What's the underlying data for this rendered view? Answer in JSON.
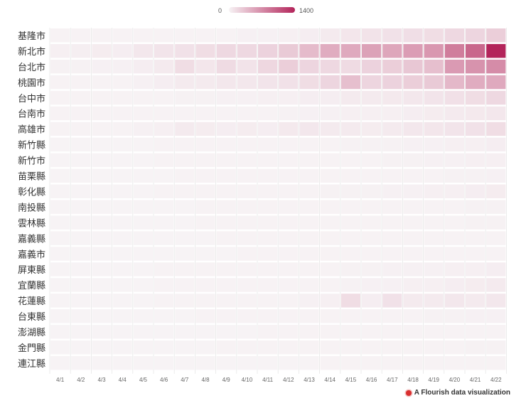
{
  "chart_data": {
    "type": "heatmap",
    "title": "",
    "legend": {
      "min_label": "0",
      "max_label": "1400",
      "min": 0,
      "max": 1400,
      "placement": "top-center"
    },
    "colors": {
      "low": "#f7f3f5",
      "high": "#b3245a",
      "grid": "#e6e6e6"
    },
    "columns": [
      "4/1",
      "4/2",
      "4/3",
      "4/4",
      "4/5",
      "4/6",
      "4/7",
      "4/8",
      "4/9",
      "4/10",
      "4/11",
      "4/12",
      "4/13",
      "4/14",
      "4/15",
      "4/16",
      "4/17",
      "4/18",
      "4/19",
      "4/20",
      "4/21",
      "4/22"
    ],
    "rows": [
      "基隆市",
      "新北市",
      "台北市",
      "桃園市",
      "台中市",
      "台南市",
      "高雄市",
      "新竹縣",
      "新竹市",
      "苗栗縣",
      "彰化縣",
      "南投縣",
      "雲林縣",
      "嘉義縣",
      "嘉義市",
      "屏東縣",
      "宜蘭縣",
      "花蓮縣",
      "台東縣",
      "澎湖縣",
      "金門縣",
      "連江縣"
    ],
    "values": [
      [
        5,
        5,
        5,
        5,
        5,
        5,
        10,
        10,
        10,
        20,
        20,
        30,
        40,
        60,
        90,
        110,
        120,
        140,
        150,
        180,
        200,
        250
      ],
      [
        30,
        35,
        50,
        40,
        80,
        100,
        120,
        150,
        180,
        180,
        220,
        280,
        380,
        480,
        500,
        550,
        520,
        580,
        620,
        800,
        950,
        1400
      ],
      [
        15,
        15,
        20,
        20,
        40,
        60,
        150,
        90,
        160,
        110,
        190,
        250,
        200,
        180,
        160,
        220,
        250,
        300,
        350,
        600,
        650,
        700
      ],
      [
        10,
        10,
        10,
        10,
        20,
        40,
        60,
        60,
        80,
        80,
        100,
        120,
        150,
        200,
        350,
        200,
        220,
        250,
        280,
        400,
        480,
        500
      ],
      [
        5,
        5,
        5,
        5,
        5,
        10,
        15,
        15,
        20,
        20,
        25,
        30,
        40,
        40,
        60,
        60,
        70,
        80,
        100,
        130,
        150,
        180
      ],
      [
        5,
        5,
        5,
        5,
        5,
        5,
        5,
        5,
        10,
        10,
        10,
        15,
        20,
        20,
        30,
        30,
        30,
        40,
        50,
        60,
        70,
        80
      ],
      [
        10,
        10,
        10,
        5,
        20,
        30,
        60,
        50,
        40,
        50,
        40,
        70,
        80,
        60,
        60,
        50,
        60,
        80,
        90,
        100,
        120,
        150
      ],
      [
        2,
        2,
        2,
        2,
        2,
        5,
        5,
        5,
        5,
        5,
        5,
        10,
        10,
        10,
        15,
        15,
        15,
        20,
        20,
        30,
        30,
        40
      ],
      [
        2,
        2,
        2,
        2,
        2,
        5,
        5,
        5,
        5,
        5,
        5,
        10,
        10,
        10,
        10,
        10,
        15,
        15,
        20,
        20,
        30,
        30
      ],
      [
        2,
        2,
        2,
        2,
        2,
        2,
        5,
        5,
        5,
        5,
        5,
        5,
        5,
        10,
        10,
        10,
        10,
        10,
        10,
        15,
        15,
        20
      ],
      [
        2,
        2,
        2,
        2,
        2,
        5,
        5,
        5,
        5,
        5,
        5,
        10,
        10,
        15,
        15,
        15,
        20,
        20,
        30,
        30,
        40,
        50
      ],
      [
        2,
        2,
        2,
        2,
        2,
        2,
        2,
        5,
        5,
        5,
        5,
        5,
        5,
        5,
        10,
        10,
        10,
        10,
        10,
        10,
        15,
        15
      ],
      [
        2,
        2,
        2,
        2,
        2,
        2,
        2,
        5,
        5,
        5,
        5,
        5,
        5,
        5,
        5,
        10,
        10,
        10,
        10,
        10,
        15,
        15
      ],
      [
        2,
        2,
        2,
        2,
        2,
        2,
        2,
        2,
        5,
        5,
        5,
        5,
        5,
        5,
        5,
        5,
        10,
        10,
        10,
        10,
        10,
        10
      ],
      [
        2,
        2,
        2,
        2,
        2,
        2,
        2,
        2,
        2,
        5,
        5,
        5,
        5,
        5,
        5,
        5,
        5,
        5,
        10,
        10,
        10,
        10
      ],
      [
        2,
        2,
        2,
        2,
        2,
        5,
        5,
        5,
        5,
        10,
        10,
        10,
        10,
        10,
        15,
        15,
        20,
        20,
        20,
        30,
        30,
        40
      ],
      [
        2,
        2,
        2,
        2,
        2,
        5,
        5,
        5,
        5,
        5,
        5,
        10,
        10,
        10,
        15,
        20,
        20,
        30,
        30,
        40,
        50,
        60
      ],
      [
        2,
        2,
        2,
        2,
        2,
        5,
        5,
        5,
        5,
        5,
        10,
        10,
        20,
        30,
        150,
        40,
        120,
        60,
        60,
        80,
        60,
        80
      ],
      [
        2,
        2,
        2,
        2,
        2,
        2,
        2,
        5,
        5,
        5,
        5,
        5,
        5,
        10,
        10,
        10,
        10,
        10,
        15,
        15,
        20,
        20
      ],
      [
        2,
        2,
        2,
        2,
        2,
        2,
        2,
        2,
        2,
        2,
        5,
        5,
        5,
        5,
        5,
        5,
        5,
        5,
        5,
        10,
        10,
        10
      ],
      [
        2,
        2,
        2,
        2,
        2,
        2,
        2,
        2,
        5,
        5,
        5,
        5,
        5,
        5,
        5,
        10,
        10,
        10,
        10,
        10,
        15,
        15
      ],
      [
        2,
        2,
        2,
        2,
        2,
        2,
        2,
        2,
        2,
        2,
        2,
        2,
        2,
        5,
        5,
        5,
        5,
        5,
        5,
        5,
        5,
        5
      ]
    ]
  },
  "credit": {
    "text": "A Flourish data visualization",
    "dot_color": "#d92f2f"
  }
}
